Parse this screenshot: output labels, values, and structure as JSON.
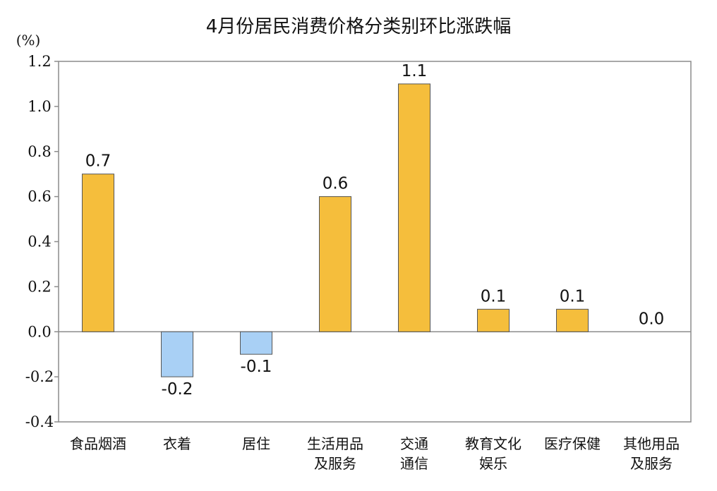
{
  "chart_data": {
    "type": "bar",
    "title": "4月份居民消费价格分类别环比涨跌幅",
    "unit": "(%)",
    "ylim": [
      -0.4,
      1.2
    ],
    "yticks": [
      "1.2",
      "1.0",
      "0.8",
      "0.6",
      "0.4",
      "0.2",
      "0.0",
      "-0.2",
      "-0.4"
    ],
    "ytick_values": [
      1.2,
      1.0,
      0.8,
      0.6,
      0.4,
      0.2,
      0.0,
      -0.2,
      -0.4
    ],
    "categories": [
      [
        "食品烟酒"
      ],
      [
        "衣着"
      ],
      [
        "居住"
      ],
      [
        "生活用品",
        "及服务"
      ],
      [
        "交通",
        "通信"
      ],
      [
        "教育文化",
        "娱乐"
      ],
      [
        "医疗保健"
      ],
      [
        "其他用品",
        "及服务"
      ]
    ],
    "values": [
      0.7,
      -0.2,
      -0.1,
      0.6,
      1.1,
      0.1,
      0.1,
      0.0
    ],
    "data_labels": [
      "0.7",
      "-0.2",
      "-0.1",
      "0.6",
      "1.1",
      "0.1",
      "0.1",
      "0.0"
    ],
    "colors": {
      "positive": "#F5BE3C",
      "negative": "#A9D0F5",
      "bar_edge": "#555555",
      "axis": "#8c8c8c"
    },
    "grid": false
  }
}
